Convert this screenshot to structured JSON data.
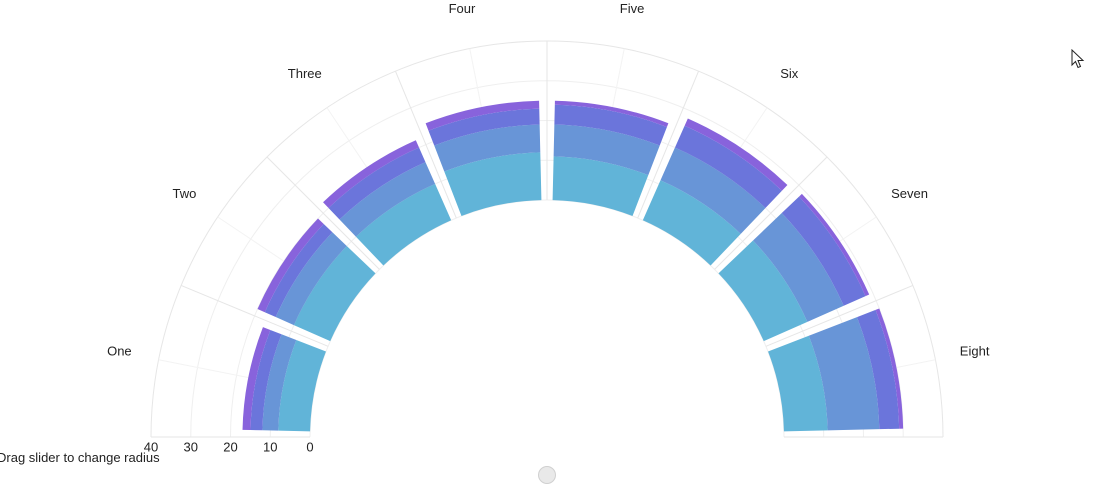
{
  "chart_data": {
    "type": "radial-bar",
    "categories": [
      "One",
      "Two",
      "Three",
      "Four",
      "Five",
      "Six",
      "Seven",
      "Eight"
    ],
    "series": [
      {
        "values": [
          8,
          10,
          10,
          12,
          11,
          11,
          12,
          11
        ]
      },
      {
        "values": [
          4,
          5,
          6,
          7,
          8,
          9,
          10,
          13
        ]
      },
      {
        "values": [
          3,
          3,
          4,
          4,
          5,
          6,
          6,
          5
        ]
      },
      {
        "values": [
          2,
          2,
          2,
          2,
          1,
          2,
          1,
          1
        ]
      }
    ],
    "series_colors": [
      "#61b4d8",
      "#6895d7",
      "#6b75db",
      "#8863dc"
    ],
    "radial_axis": {
      "ticks": [
        "0",
        "10",
        "20",
        "30",
        "40"
      ],
      "range": [
        0,
        40
      ]
    },
    "start_angle_deg": 180,
    "end_angle_deg": 360,
    "grid": true
  },
  "controls": {
    "slider_hint": "Drag slider to change radius",
    "cursor_icon": "pointer-arrow-icon"
  }
}
